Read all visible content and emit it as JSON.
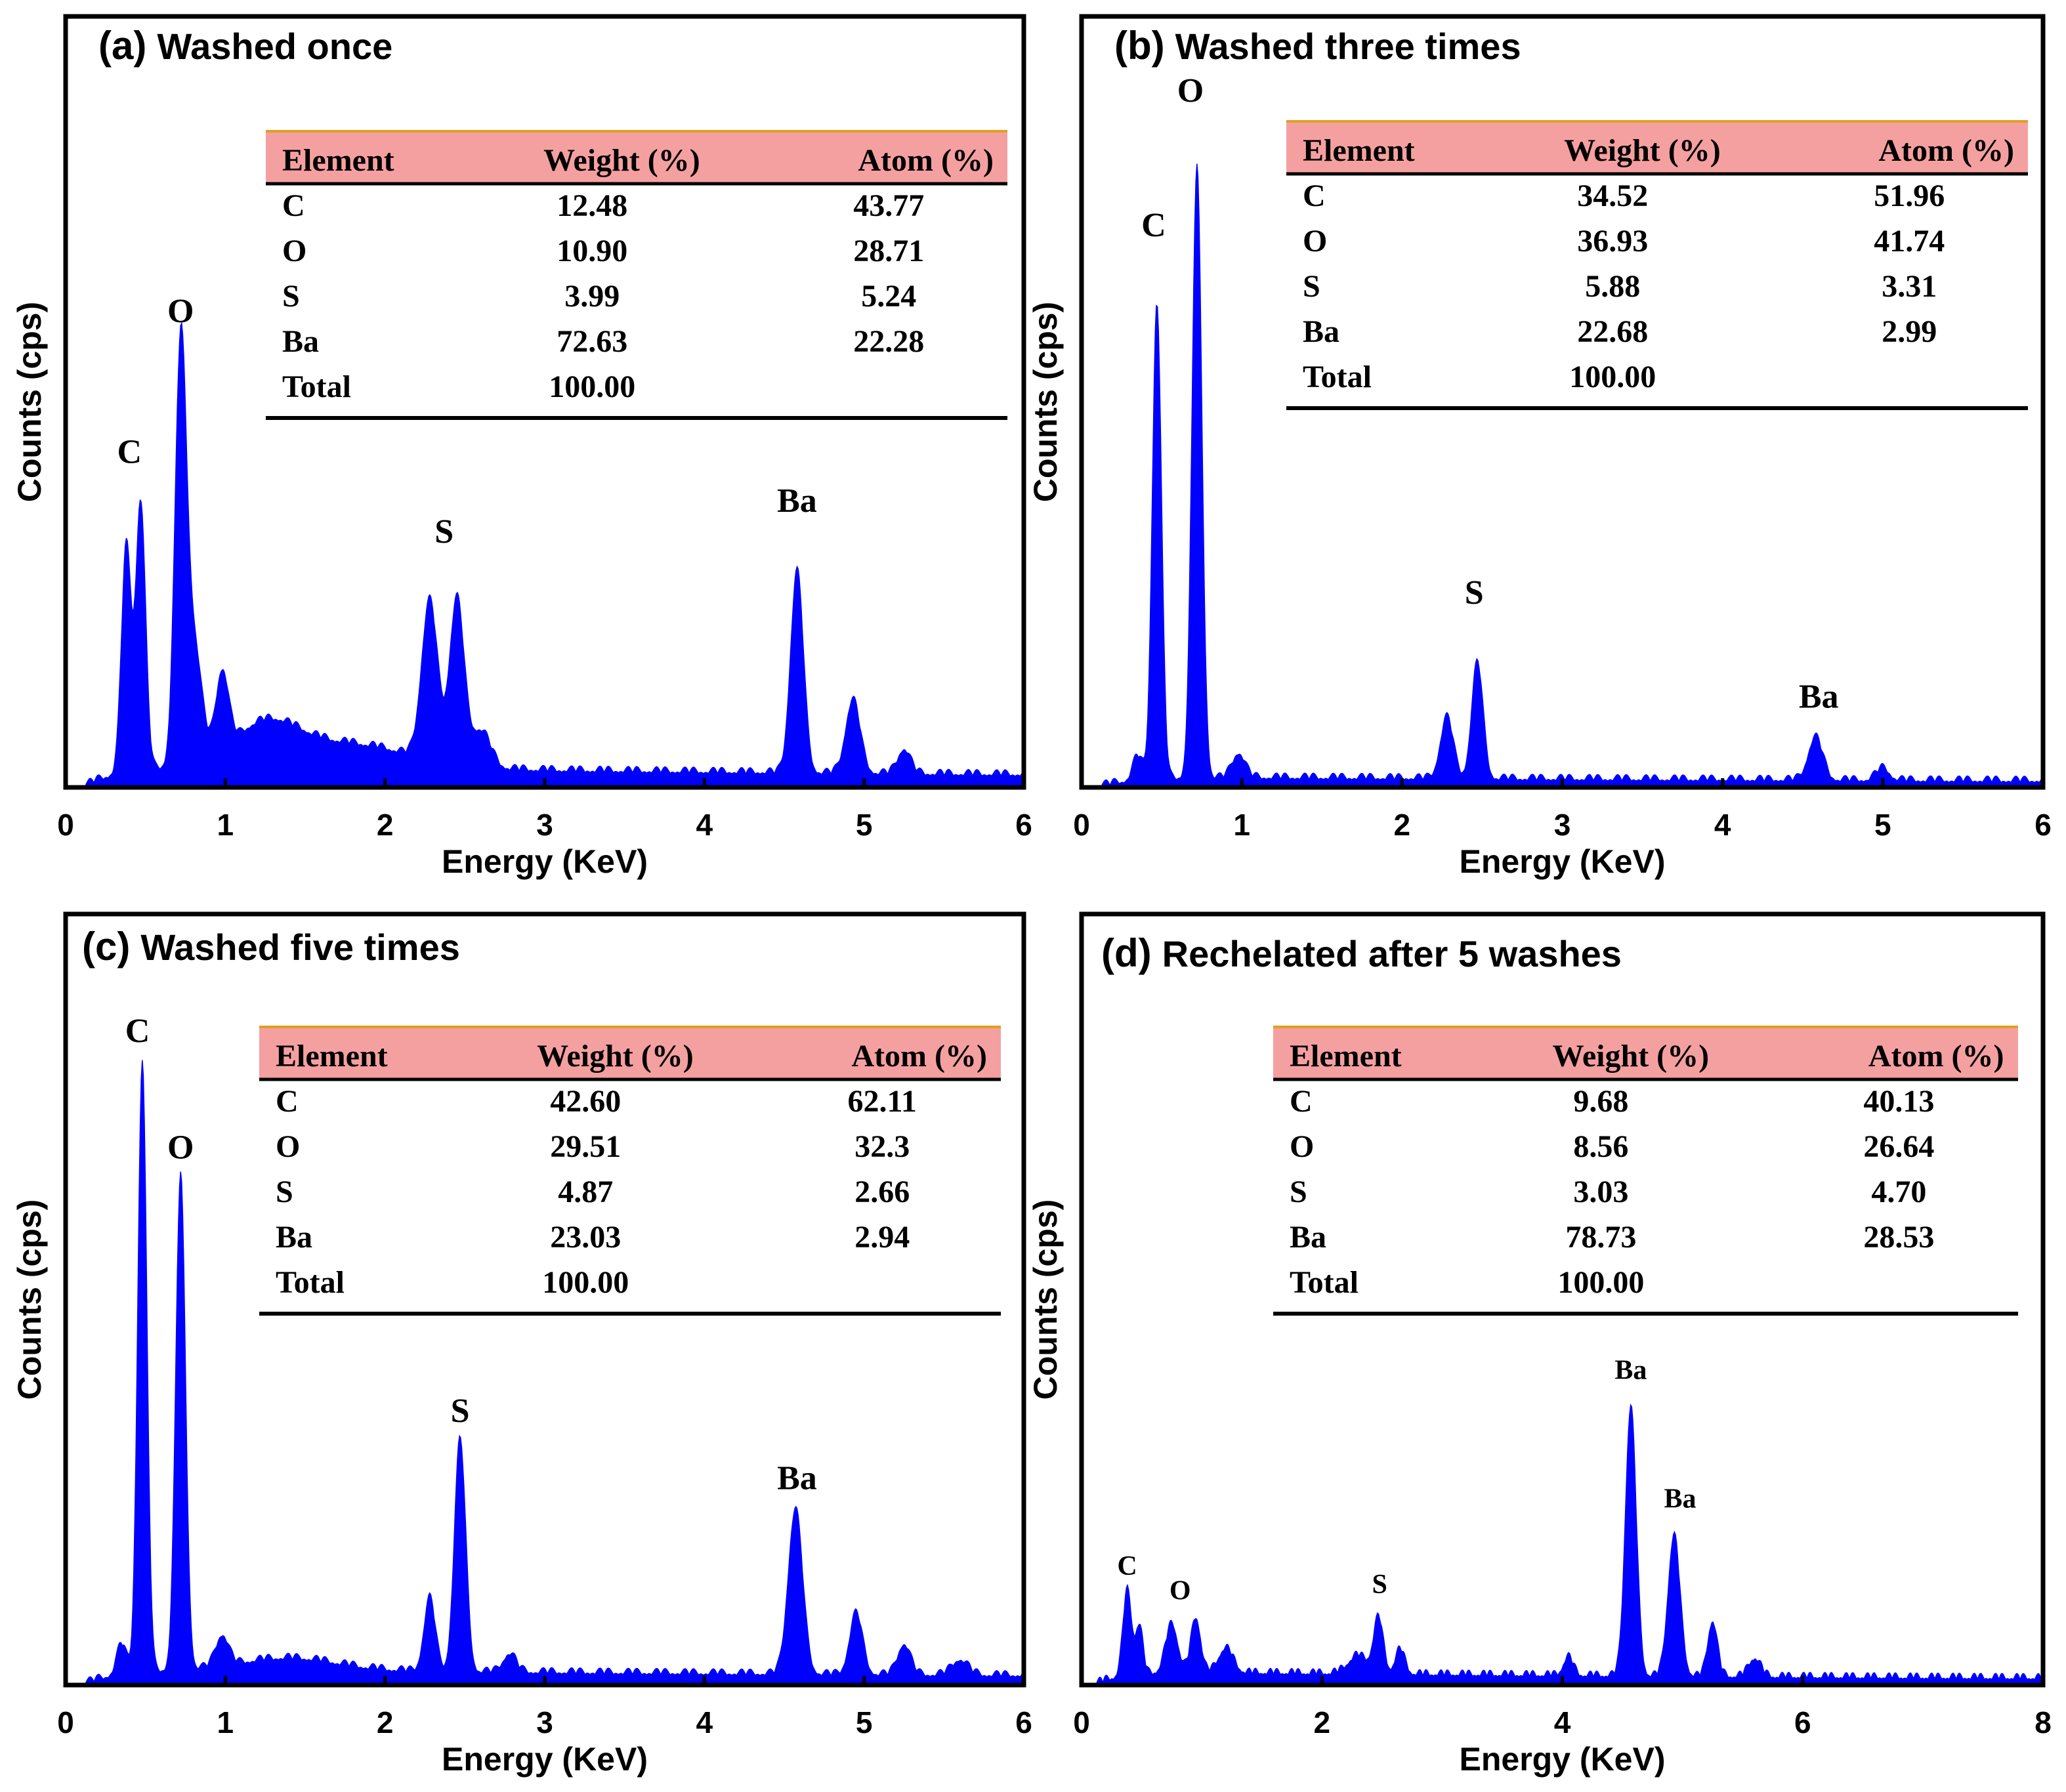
{
  "chart_data": [
    {
      "type": "line",
      "panel_label": "(a)",
      "title": "Washed once",
      "xlabel": "Energy (KeV)",
      "ylabel": "Counts (cps)",
      "xlim": [
        0,
        6
      ],
      "ylim": [
        0,
        1
      ],
      "xticks": [
        "0",
        "1",
        "2",
        "3",
        "4",
        "5",
        "6"
      ],
      "fill_color": "#0000ff",
      "baseline": 0.035,
      "peaks": [
        [
          0.38,
          0.37,
          0.03
        ],
        [
          0.47,
          0.44,
          0.03
        ],
        [
          0.72,
          0.66,
          0.035
        ],
        [
          0.8,
          0.2,
          0.05
        ],
        [
          0.98,
          0.13,
          0.04
        ],
        [
          1.25,
          0.06,
          0.2
        ],
        [
          1.75,
          0.04,
          0.4
        ],
        [
          2.28,
          0.26,
          0.05
        ],
        [
          2.45,
          0.27,
          0.045
        ],
        [
          2.6,
          0.06,
          0.06
        ],
        [
          4.58,
          0.33,
          0.04
        ],
        [
          4.93,
          0.12,
          0.045
        ],
        [
          5.25,
          0.04,
          0.04
        ]
      ],
      "peak_labels": [
        {
          "text": "C",
          "x": 0.4,
          "y": 0.53
        },
        {
          "text": "O",
          "x": 0.72,
          "y": 0.76
        },
        {
          "text": "S",
          "x": 2.37,
          "y": 0.4
        },
        {
          "text": "Ba",
          "x": 4.58,
          "y": 0.45
        }
      ],
      "table": {
        "headers": [
          "Element",
          "Weight (%)",
          "Atom (%)"
        ],
        "rows": [
          [
            "C",
            "12.48",
            "43.77"
          ],
          [
            "O",
            "10.90",
            "28.71"
          ],
          [
            "S",
            "3.99",
            "5.24"
          ],
          [
            "Ba",
            "72.63",
            "22.28"
          ],
          [
            "Total",
            "100.00",
            ""
          ]
        ]
      }
    },
    {
      "type": "line",
      "panel_label": "(b)",
      "title": "Washed three times",
      "xlabel": "Energy (KeV)",
      "ylabel": "Counts (cps)",
      "xlim": [
        0,
        6
      ],
      "ylim": [
        0,
        1
      ],
      "xticks": [
        "0",
        "1",
        "2",
        "3",
        "4",
        "5",
        "6"
      ],
      "fill_color": "#0000ff",
      "baseline": 0.015,
      "peaks": [
        [
          0.35,
          0.04,
          0.03
        ],
        [
          0.47,
          0.78,
          0.028
        ],
        [
          0.72,
          1.0,
          0.03
        ],
        [
          0.98,
          0.04,
          0.04
        ],
        [
          2.28,
          0.1,
          0.04
        ],
        [
          2.47,
          0.19,
          0.035
        ],
        [
          4.58,
          0.07,
          0.045
        ],
        [
          5.0,
          0.02,
          0.04
        ]
      ],
      "peak_labels": [
        {
          "text": "C",
          "x": 0.45,
          "y": 0.9
        },
        {
          "text": "O",
          "x": 0.68,
          "y": 1.12
        },
        {
          "text": "S",
          "x": 2.45,
          "y": 0.3
        },
        {
          "text": "Ba",
          "x": 4.6,
          "y": 0.13
        }
      ],
      "table": {
        "headers": [
          "Element",
          "Weight (%)",
          "Atom (%)"
        ],
        "rows": [
          [
            "C",
            "34.52",
            "51.96"
          ],
          [
            "O",
            "36.93",
            "41.74"
          ],
          [
            "S",
            "5.88",
            "3.31"
          ],
          [
            "Ba",
            "22.68",
            "2.99"
          ],
          [
            "Total",
            "100.00",
            ""
          ]
        ]
      }
    },
    {
      "type": "line",
      "panel_label": "(c)",
      "title": "Washed five times",
      "xlabel": "Energy (KeV)",
      "ylabel": "Counts (cps)",
      "xlim": [
        0,
        6
      ],
      "ylim": [
        0,
        1
      ],
      "xticks": [
        "0",
        "1",
        "2",
        "3",
        "4",
        "5",
        "6"
      ],
      "fill_color": "#0000ff",
      "baseline": 0.025,
      "peaks": [
        [
          0.35,
          0.05,
          0.03
        ],
        [
          0.48,
          1.0,
          0.028
        ],
        [
          0.72,
          0.81,
          0.03
        ],
        [
          0.98,
          0.05,
          0.04
        ],
        [
          1.4,
          0.02,
          0.3
        ],
        [
          2.28,
          0.12,
          0.035
        ],
        [
          2.47,
          0.38,
          0.035
        ],
        [
          2.78,
          0.03,
          0.04
        ],
        [
          4.57,
          0.27,
          0.045
        ],
        [
          4.95,
          0.1,
          0.04
        ],
        [
          5.25,
          0.05,
          0.04
        ],
        [
          5.6,
          0.025,
          0.05
        ]
      ],
      "peak_labels": [
        {
          "text": "C",
          "x": 0.45,
          "y": 1.05
        },
        {
          "text": "O",
          "x": 0.72,
          "y": 0.86
        },
        {
          "text": "S",
          "x": 2.47,
          "y": 0.43
        },
        {
          "text": "Ba",
          "x": 4.58,
          "y": 0.32
        }
      ],
      "table": {
        "headers": [
          "Element",
          "Weight (%)",
          "Atom (%)"
        ],
        "rows": [
          [
            "C",
            "42.60",
            "62.11"
          ],
          [
            "O",
            "29.51",
            "32.3"
          ],
          [
            "S",
            "4.87",
            "2.66"
          ],
          [
            "Ba",
            "23.03",
            "2.94"
          ],
          [
            "Total",
            "100.00",
            ""
          ]
        ]
      }
    },
    {
      "type": "line",
      "panel_label": "(d)",
      "title": "Rechelated after 5 washes",
      "xlabel": "Energy (KeV)",
      "ylabel": "Counts (cps)",
      "xlim": [
        0,
        8
      ],
      "ylim": [
        0,
        1
      ],
      "xticks": [
        "0",
        "2",
        "4",
        "6",
        "8"
      ],
      "fill_color": "#0000ff",
      "baseline": 0.02,
      "peaks": [
        [
          0.38,
          0.14,
          0.035
        ],
        [
          0.48,
          0.08,
          0.03
        ],
        [
          0.75,
          0.08,
          0.05
        ],
        [
          0.95,
          0.09,
          0.04
        ],
        [
          1.2,
          0.04,
          0.06
        ],
        [
          2.3,
          0.03,
          0.08
        ],
        [
          2.47,
          0.09,
          0.04
        ],
        [
          2.65,
          0.04,
          0.04
        ],
        [
          4.05,
          0.03,
          0.04
        ],
        [
          4.57,
          0.44,
          0.045
        ],
        [
          4.93,
          0.23,
          0.05
        ],
        [
          5.25,
          0.09,
          0.04
        ],
        [
          5.6,
          0.03,
          0.05
        ]
      ],
      "peak_labels": [
        {
          "text": "C",
          "x": 0.38,
          "y": 0.18
        },
        {
          "text": "O",
          "x": 0.82,
          "y": 0.14
        },
        {
          "text": "S",
          "x": 2.48,
          "y": 0.15
        },
        {
          "text": "Ba",
          "x": 4.57,
          "y": 0.5
        },
        {
          "text": "Ba",
          "x": 4.98,
          "y": 0.29
        }
      ],
      "table": {
        "headers": [
          "Element",
          "Weight (%)",
          "Atom (%)"
        ],
        "rows": [
          [
            "C",
            "9.68",
            "40.13"
          ],
          [
            "O",
            "8.56",
            "26.64"
          ],
          [
            "S",
            "3.03",
            "4.70"
          ],
          [
            "Ba",
            "78.73",
            "28.53"
          ],
          [
            "Total",
            "100.00",
            ""
          ]
        ]
      }
    }
  ]
}
